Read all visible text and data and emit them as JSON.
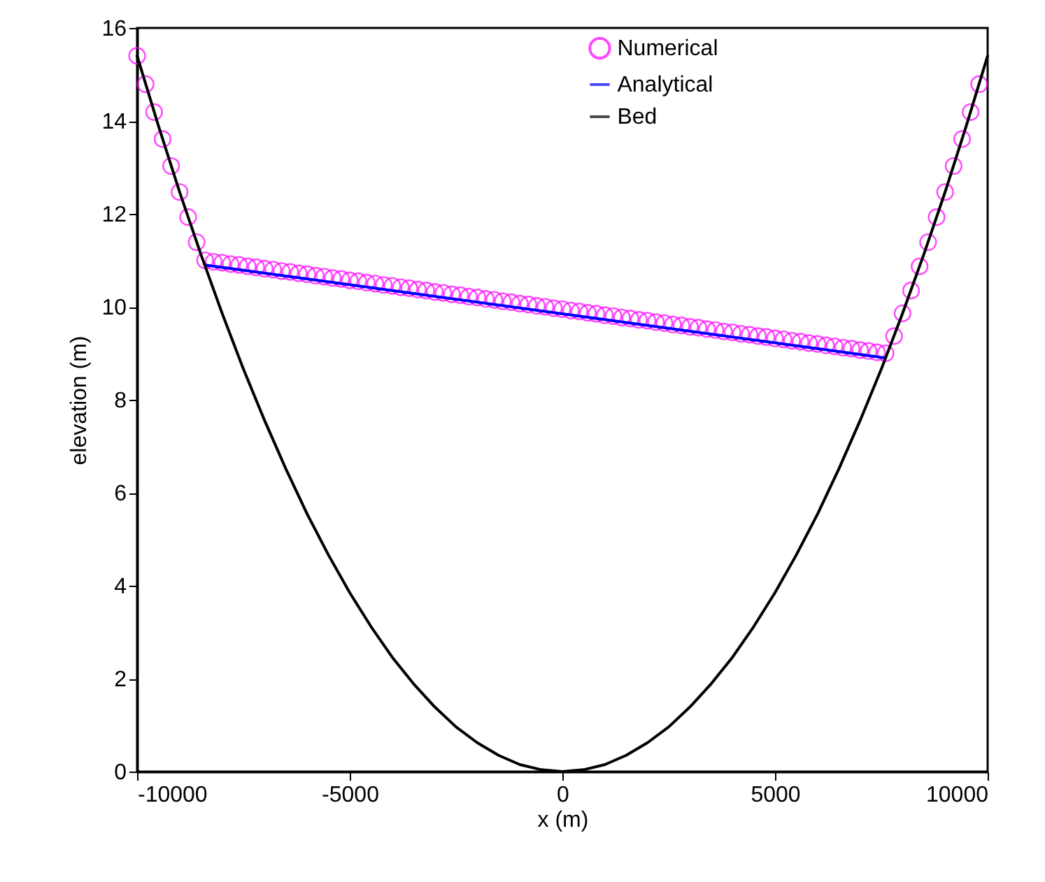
{
  "chart_data": {
    "type": "line",
    "xlabel": "x (m)",
    "ylabel": "elevation (m)",
    "xlim": [
      -10000,
      10000
    ],
    "ylim": [
      0,
      16
    ],
    "xticks": [
      -10000,
      -5000,
      0,
      5000,
      10000
    ],
    "yticks": [
      0,
      2,
      4,
      6,
      8,
      10,
      12,
      14,
      16
    ],
    "legend": "top right",
    "series": [
      {
        "name": "Numerical",
        "type": "scatter",
        "marker": "circle",
        "color": "#ff00ff",
        "x": [
          -10000,
          -9800,
          -9600,
          -9400,
          -9200,
          -9000,
          -8800,
          -8600,
          -8400,
          -8200,
          -8000,
          -7800,
          -7600,
          -7400,
          -7200,
          -7000,
          -6800,
          -6600,
          -6400,
          -6200,
          -6000,
          -5800,
          -5600,
          -5400,
          -5200,
          -5000,
          -4800,
          -4600,
          -4400,
          -4200,
          -4000,
          -3800,
          -3600,
          -3400,
          -3200,
          -3000,
          -2800,
          -2600,
          -2400,
          -2200,
          -2000,
          -1800,
          -1600,
          -1400,
          -1200,
          -1000,
          -800,
          -600,
          -400,
          -200,
          0,
          200,
          400,
          600,
          800,
          1000,
          1200,
          1400,
          1600,
          1800,
          2000,
          2200,
          2400,
          2600,
          2800,
          3000,
          3200,
          3400,
          3600,
          3800,
          4000,
          4200,
          4400,
          4600,
          4800,
          5000,
          5200,
          5400,
          5600,
          5800,
          6000,
          6200,
          6400,
          6600,
          6800,
          7000,
          7200,
          7400,
          7600,
          7800,
          8000,
          8200,
          8400,
          8600,
          8800,
          9000,
          9200,
          9400,
          9600,
          9800
        ],
        "values": [
          15.4,
          14.79,
          14.19,
          13.61,
          13.03,
          12.47,
          11.93,
          11.39,
          11.0,
          10.97,
          10.95,
          10.92,
          10.9,
          10.87,
          10.85,
          10.82,
          10.8,
          10.77,
          10.75,
          10.72,
          10.7,
          10.67,
          10.65,
          10.62,
          10.6,
          10.57,
          10.55,
          10.52,
          10.5,
          10.47,
          10.45,
          10.42,
          10.4,
          10.37,
          10.35,
          10.32,
          10.3,
          10.27,
          10.25,
          10.22,
          10.2,
          10.17,
          10.15,
          10.12,
          10.1,
          10.07,
          10.05,
          10.02,
          10.0,
          9.97,
          9.95,
          9.92,
          9.9,
          9.87,
          9.85,
          9.82,
          9.8,
          9.77,
          9.75,
          9.72,
          9.7,
          9.67,
          9.65,
          9.62,
          9.6,
          9.57,
          9.55,
          9.52,
          9.5,
          9.47,
          9.45,
          9.42,
          9.4,
          9.37,
          9.35,
          9.32,
          9.3,
          9.27,
          9.25,
          9.22,
          9.2,
          9.17,
          9.15,
          9.12,
          9.1,
          9.07,
          9.05,
          9.02,
          9.0,
          9.37,
          9.86,
          10.35,
          10.87,
          11.39,
          11.93,
          12.47,
          13.03,
          13.61,
          14.19,
          14.79
        ]
      },
      {
        "name": "Analytical",
        "color": "#0000ff",
        "x": [
          -8400,
          0,
          7600
        ],
        "values": [
          10.9,
          9.85,
          8.9
        ]
      },
      {
        "name": "Bed",
        "color": "#000000",
        "x": [
          -10000,
          -9500,
          -9000,
          -8500,
          -8000,
          -7500,
          -7000,
          -6500,
          -6000,
          -5500,
          -5000,
          -4500,
          -4000,
          -3500,
          -3000,
          -2500,
          -2000,
          -1500,
          -1000,
          -500,
          0,
          500,
          1000,
          1500,
          2000,
          2500,
          3000,
          3500,
          4000,
          4500,
          5000,
          5500,
          6000,
          6500,
          7000,
          7500,
          8000,
          8500,
          9000,
          9500,
          10000
        ],
        "values": [
          15.4,
          13.9,
          12.47,
          11.13,
          9.86,
          8.66,
          7.55,
          6.51,
          5.54,
          4.66,
          3.85,
          3.12,
          2.46,
          1.89,
          1.39,
          0.96,
          0.62,
          0.35,
          0.15,
          0.04,
          0,
          0.04,
          0.15,
          0.35,
          0.62,
          0.96,
          1.39,
          1.89,
          2.46,
          3.12,
          3.85,
          4.66,
          5.54,
          6.51,
          7.55,
          8.66,
          9.86,
          11.13,
          12.47,
          13.9,
          15.4
        ]
      }
    ]
  }
}
